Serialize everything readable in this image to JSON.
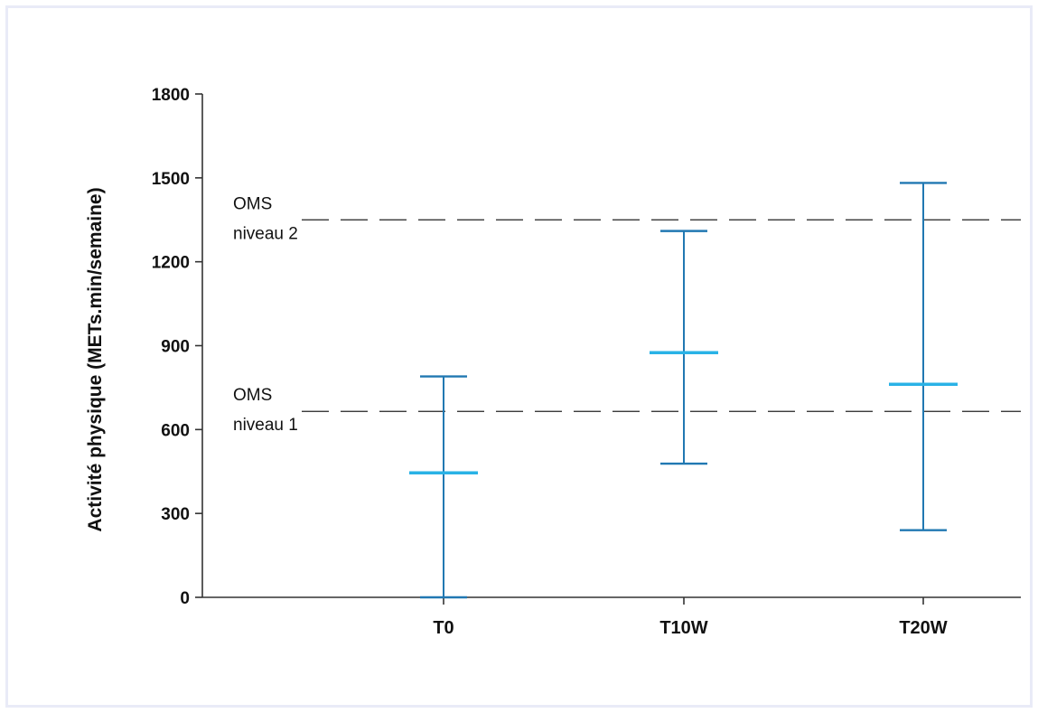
{
  "chart_data": {
    "type": "errorbar",
    "title": "",
    "xlabel": "",
    "ylabel": "Activité physique (METs.min/semaine)",
    "ylim": [
      0,
      1800
    ],
    "yticks": [
      0,
      300,
      600,
      900,
      1200,
      1500,
      1800
    ],
    "categories": [
      "T0",
      "T10W",
      "T20W"
    ],
    "series": [
      {
        "mean": [
          445,
          875,
          762
        ],
        "lower": [
          0,
          478,
          240
        ],
        "upper": [
          790,
          1310,
          1482
        ]
      }
    ],
    "reference_lines": [
      {
        "label_line1": "OMS",
        "label_line2": "niveau 2",
        "value": 1350
      },
      {
        "label_line1": "OMS",
        "label_line2": "niveau 1",
        "value": 665
      }
    ],
    "grid": false,
    "colors": {
      "whisker": "#2178b2",
      "mean": "#29b2e6",
      "axis": "#333333",
      "reference": "#222222",
      "frame": "#e9ebf7"
    }
  }
}
